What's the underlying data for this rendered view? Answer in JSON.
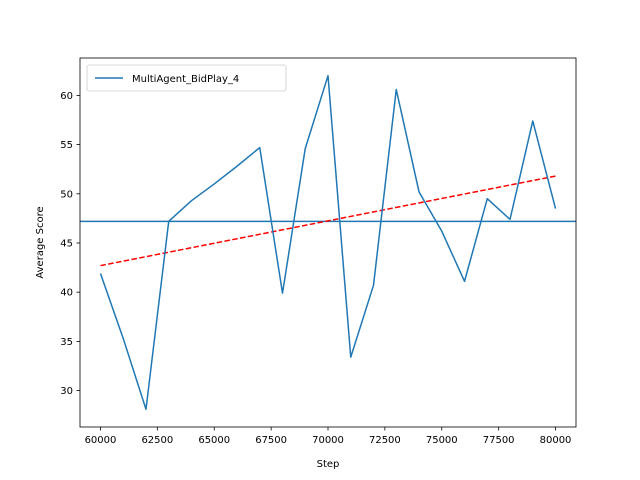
{
  "chart_data": {
    "type": "line",
    "title": "",
    "xlabel": "Step",
    "ylabel": "Average Score",
    "xlim": [
      59100,
      80900
    ],
    "ylim": [
      26.3,
      63.8
    ],
    "xticks": [
      60000,
      62500,
      65000,
      67500,
      70000,
      72500,
      75000,
      77500,
      80000
    ],
    "yticks": [
      30,
      35,
      40,
      45,
      50,
      55,
      60
    ],
    "grid": false,
    "legend_position": "top-left",
    "series": [
      {
        "name": "MultiAgent_BidPlay_4",
        "color": "#1f77b4",
        "style": "solid",
        "x": [
          60000,
          61000,
          62000,
          63000,
          64000,
          65000,
          66000,
          67000,
          68000,
          69000,
          70000,
          71000,
          72000,
          73000,
          74000,
          75000,
          76000,
          77000,
          78000,
          79000,
          80000
        ],
        "y": [
          41.9,
          35.3,
          28.1,
          47.2,
          49.3,
          51.0,
          52.8,
          54.7,
          39.9,
          54.6,
          62.0,
          33.4,
          40.7,
          60.6,
          50.2,
          46.2,
          41.1,
          49.5,
          47.4,
          57.4,
          48.5
        ]
      }
    ],
    "reference_lines": [
      {
        "kind": "horizontal",
        "y": 47.2,
        "color": "#1f77b4",
        "style": "solid"
      },
      {
        "kind": "trend",
        "x": [
          60000,
          80000
        ],
        "y": [
          42.7,
          51.8
        ],
        "color": "#ff0000",
        "style": "dashed"
      }
    ]
  }
}
